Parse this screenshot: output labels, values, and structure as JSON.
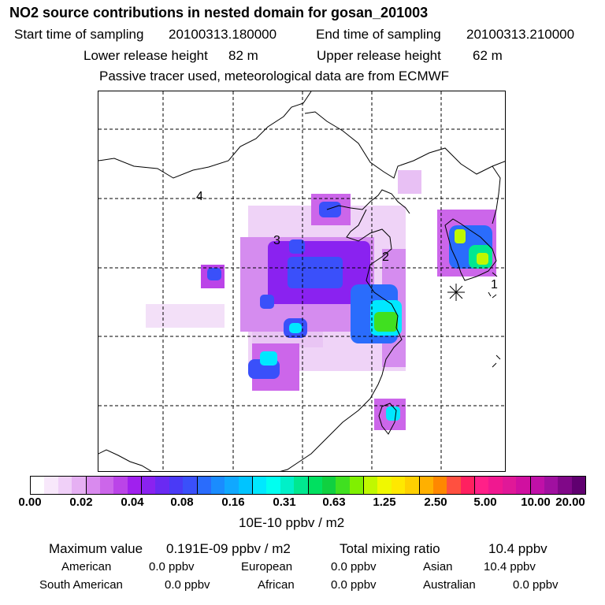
{
  "header": {
    "title": "NO2 source contributions in nested domain for gosan_201003",
    "start_label": "Start time of sampling",
    "start_value": "20100313.180000",
    "end_label": "End time of sampling",
    "end_value": "20100313.210000",
    "lower_label": "Lower release height",
    "lower_value": "82 m",
    "upper_label": "Upper release height",
    "upper_value": "62 m",
    "note": "Passive tracer used, meteorological data are from ECMWF"
  },
  "map": {
    "region_labels": [
      "1",
      "2",
      "3",
      "4"
    ],
    "receptor": "gosan",
    "colors": {
      "land_border": "#000000",
      "grid": "#000000"
    }
  },
  "legend": {
    "ticks": [
      "0.00",
      "0.02",
      "0.04",
      "0.08",
      "0.16",
      "0.31",
      "0.63",
      "1.25",
      "2.50",
      "5.00",
      "10.00",
      "20.00"
    ],
    "unit": "10E-10 ppbv / m2",
    "colors": [
      "#ffffff",
      "#f8e8fb",
      "#f0d0f8",
      "#e6b0f3",
      "#d98aee",
      "#cc66ea",
      "#bb44e8",
      "#a020ee",
      "#8a22f0",
      "#6a2af2",
      "#4a3af6",
      "#3a50fa",
      "#2a6cfc",
      "#1a8cfe",
      "#10a8ff",
      "#00c4ff",
      "#00e8ff",
      "#00fff0",
      "#00f0c8",
      "#00e890",
      "#00e060",
      "#10d040",
      "#40e020",
      "#80f000",
      "#c0f800",
      "#f0f800",
      "#ffe800",
      "#ffd000",
      "#ffb000",
      "#ff8800",
      "#ff5040",
      "#ff2060",
      "#ff2088",
      "#f01890",
      "#e01898",
      "#d010a0",
      "#c010a8",
      "#a010a0",
      "#800888",
      "#600070"
    ]
  },
  "stats": {
    "max_label": "Maximum value",
    "max_value": "0.191E-09 ppbv / m2",
    "total_label": "Total mixing ratio",
    "total_value": "10.4 ppbv",
    "american_label": "American",
    "american_value": "0.0 ppbv",
    "european_label": "European",
    "european_value": "0.0 ppbv",
    "asian_label": "Asian",
    "asian_value": "10.4 ppbv",
    "southamerican_label": "South American",
    "southamerican_value": "0.0 ppbv",
    "african_label": "African",
    "african_value": "0.0 ppbv",
    "australian_label": "Australian",
    "australian_value": "0.0 ppbv"
  }
}
